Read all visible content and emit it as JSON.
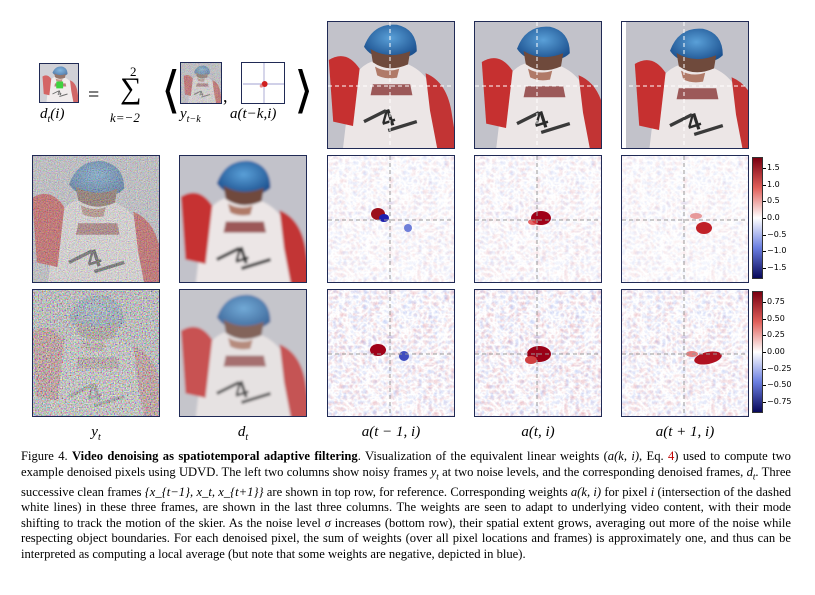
{
  "equation": {
    "lhs": "d",
    "lhs_sub": "t",
    "lhs_arg": "(i)",
    "equals": "=",
    "sum_upper": "2",
    "sum_lower": "k=−2",
    "sum_symbol": "∑",
    "y_label": "y",
    "y_sub": "t−k",
    "comma": ",",
    "a_label": "a(t−k,i)",
    "lang": "⟨",
    "rang": "⟩"
  },
  "columns": {
    "col1": "y",
    "col1_sub": "t",
    "col2": "d",
    "col2_sub": "t",
    "col3": "a(t − 1, i)",
    "col4": "a(t, i)",
    "col5": "a(t + 1, i)"
  },
  "colorbar_top": {
    "ticks": [
      "1.5",
      "1.0",
      "0.5",
      "0.0",
      "−0.5",
      "−1.0",
      "−1.5"
    ],
    "range": [
      -1.8,
      1.8
    ]
  },
  "colorbar_bottom": {
    "ticks": [
      "0.75",
      "0.50",
      "0.25",
      "0.00",
      "−0.25",
      "−0.50",
      "−0.75"
    ],
    "range": [
      -0.9,
      0.9
    ]
  },
  "colors": {
    "positive": "#b2182b",
    "negative": "#2166ac",
    "panel_border": "#202a55"
  },
  "caption": {
    "fig": "Figure 4.",
    "title": "Video denoising as spatiotemporal adaptive filtering",
    "t1": ". Visualization of the equivalent linear weights (",
    "m1": "a(k, i)",
    "t2": ", Eq. ",
    "eqref": "4",
    "t3": ") used to compute two example denoised pixels using UDVD. The left two columns show noisy frames ",
    "m2": "y",
    "m2s": "t",
    "t4": " at two noise levels, and the corresponding denoised frames, ",
    "m3": "d",
    "m3s": "t",
    "t5": ". Three successive clean frames ",
    "m4": "{x_{t−1}, x_t, x_{t+1}}",
    "t6": " are shown in top row, for reference. Corresponding weights ",
    "m5": "a(k, i)",
    "t7": " for pixel ",
    "m6": "i",
    "t8": " (intersection of the dashed white lines) in these three frames, are shown in the last three columns. The weights are seen to adapt to underlying video content, with their mode shifting to track the motion of the skier. As the noise level ",
    "m7": "σ",
    "t9": " increases (bottom row), their spatial extent grows, averaging out more of the noise while respecting object boundaries. For each denoised pixel, the sum of weights (over all pixel locations and frames) is approximately one, and thus can be interpreted as computing a local average (but note that some weights are negative, depicted in blue)."
  }
}
